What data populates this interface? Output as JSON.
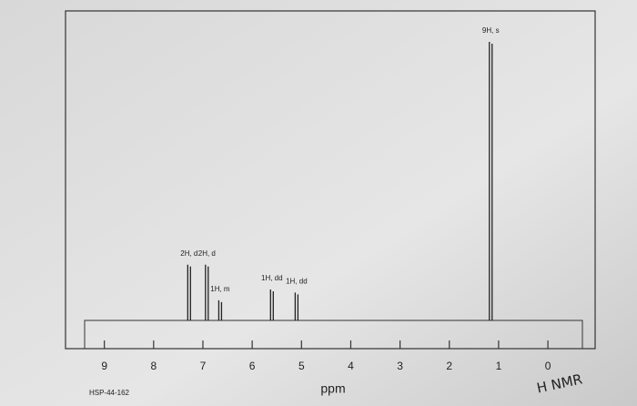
{
  "chart_data": {
    "type": "nmr",
    "xlabel": "ppm",
    "sample_id": "HSP-44-162",
    "annotation": "H NMR",
    "xlim": [
      9.4,
      -0.7
    ],
    "xticks": [
      9,
      8,
      7,
      6,
      5,
      4,
      3,
      2,
      1,
      0
    ],
    "ylim": [
      0,
      100
    ],
    "x": [
      7.28,
      6.92,
      6.65,
      5.6,
      5.1,
      1.16
    ],
    "values": [
      18,
      18,
      6.5,
      10,
      9,
      90
    ],
    "labels": [
      "2H, d",
      "2H, d",
      "1H, m",
      "1H, dd",
      "1H, dd",
      "9H, s"
    ],
    "color": "#222222"
  }
}
